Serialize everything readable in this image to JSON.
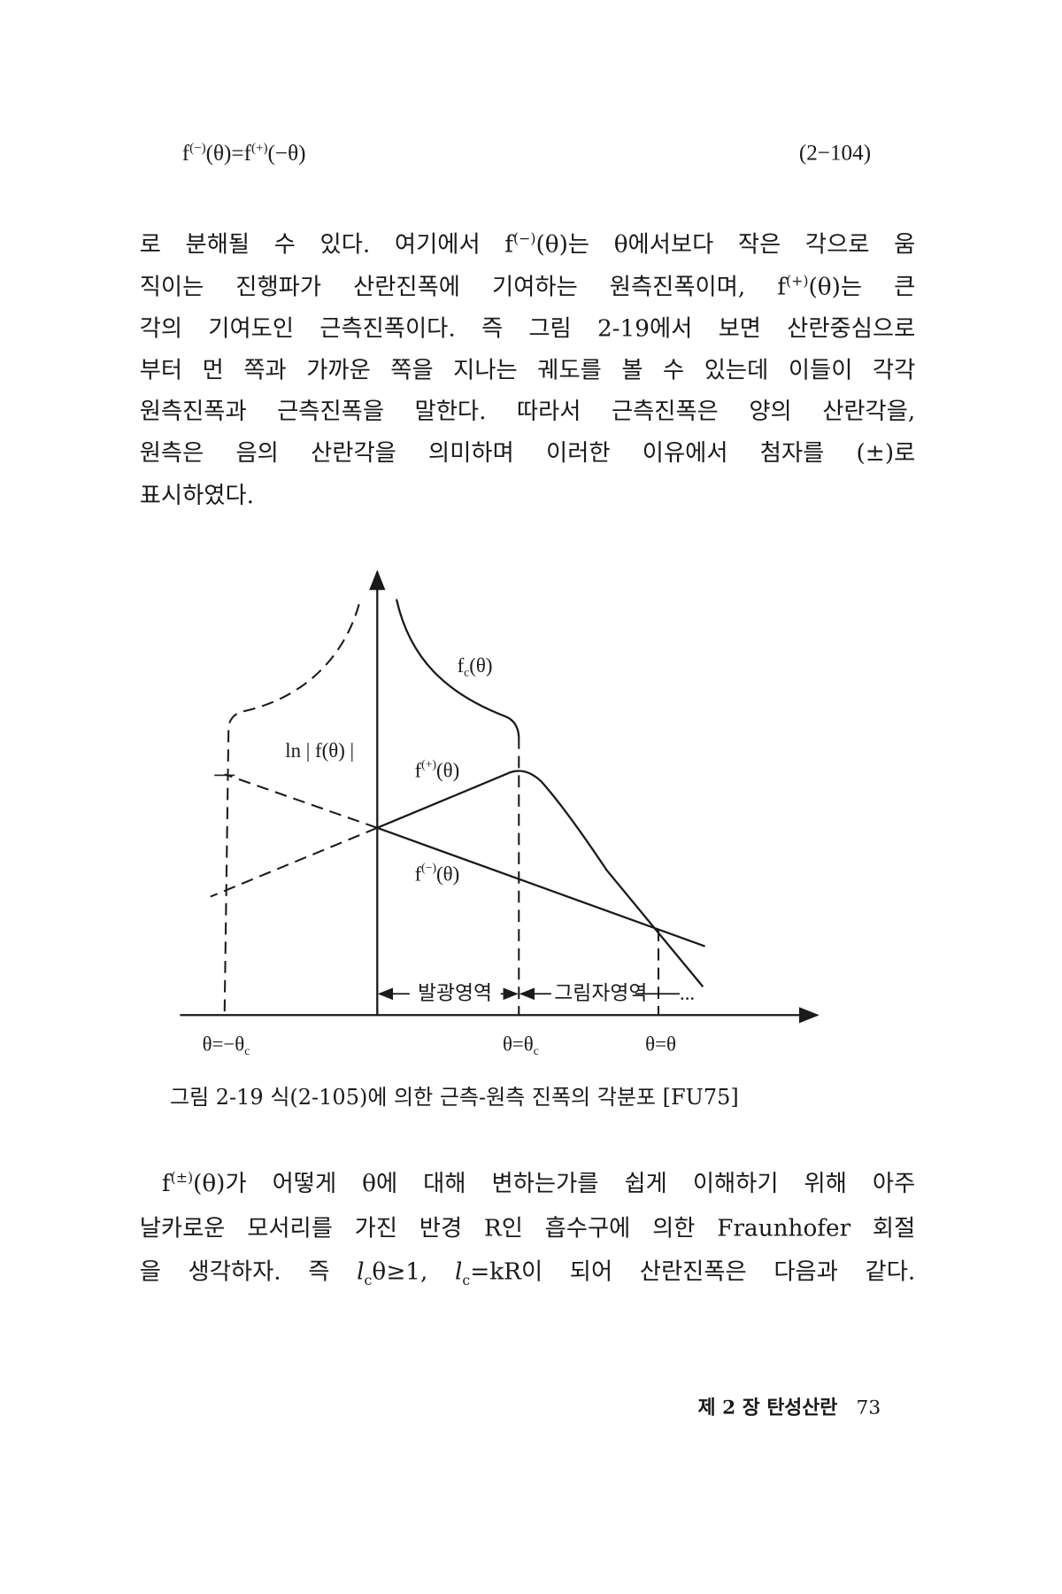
{
  "equation": {
    "lhs": [
      {
        "t": "f"
      },
      {
        "sup": "(−)"
      },
      {
        "t": "(θ)=f"
      },
      {
        "sup": "(+)"
      },
      {
        "t": "(−θ)"
      }
    ],
    "number": "(2−104)"
  },
  "paragraph1": [
    [
      {
        "t": "로 분해될 수 있다. 여기에서 f"
      },
      {
        "sup": "(−)"
      },
      {
        "t": "(θ)는 θ에서보다 작은 각으로 움"
      }
    ],
    [
      {
        "t": "직이는 진행파가 산란진폭에 기여하는 원측진폭이며, f"
      },
      {
        "sup": "(+)"
      },
      {
        "t": "(θ)는 큰"
      }
    ],
    [
      {
        "t": "각의 기여도인 근측진폭이다. 즉 그림 2-19에서 보면 산란중심으로"
      }
    ],
    [
      {
        "t": "부터 먼 쪽과 가까운 쪽을 지나는 궤도를 볼 수 있는데 이들이 각각"
      }
    ],
    [
      {
        "t": "원측진폭과 근측진폭을 말한다. 따라서 근측진폭은 양의 산란각을,"
      }
    ],
    [
      {
        "t": "원측은 음의 산란각을 의미하며 이러한 이유에서 첨자를 (±)로"
      }
    ],
    [
      {
        "t": "표시하였다."
      }
    ]
  ],
  "figure": {
    "labels": {
      "fc": "f",
      "fc_sub": "c",
      "fc_arg": "(θ)",
      "ln": "ln | f(θ) |",
      "fplus": "f",
      "fplus_sup": "(+)",
      "fplus_arg": "(θ)",
      "fminus": "f",
      "fminus_sup": "(−)",
      "fminus_arg": "(θ)",
      "lit_region": "발광영역",
      "shadow_region": "그림자영역",
      "ellipsis": "...",
      "x_neg": "θ=−θ",
      "x_neg_sub": "c",
      "x_c": "θ=θ",
      "x_c_sub": "c",
      "x_theta": "θ=θ"
    },
    "caption": "그림 2-19 식(2-105)에 의한 근측-원측 진폭의 각분포 [FU75]"
  },
  "paragraph2": [
    [
      {
        "t": "f"
      },
      {
        "sup": "(±)"
      },
      {
        "t": "(θ)가 어떻게 θ에 대해 변하는가를 쉽게 이해하기 위해 아주"
      }
    ],
    [
      {
        "t": "날카로운 모서리를 가진 반경 R인 흡수구에 의한 Fraunhofer 회절"
      }
    ],
    [
      {
        "t": "을 생각하자. 즉 "
      },
      {
        "i": "l"
      },
      {
        "sub": "c"
      },
      {
        "t": "θ≥1, "
      },
      {
        "i": "l"
      },
      {
        "sub": "c"
      },
      {
        "t": "=kR이 되어 산란진폭은 다음과 같다."
      }
    ]
  ],
  "footer": {
    "chapter": "제 2 장 탄성산란",
    "page": "73"
  }
}
